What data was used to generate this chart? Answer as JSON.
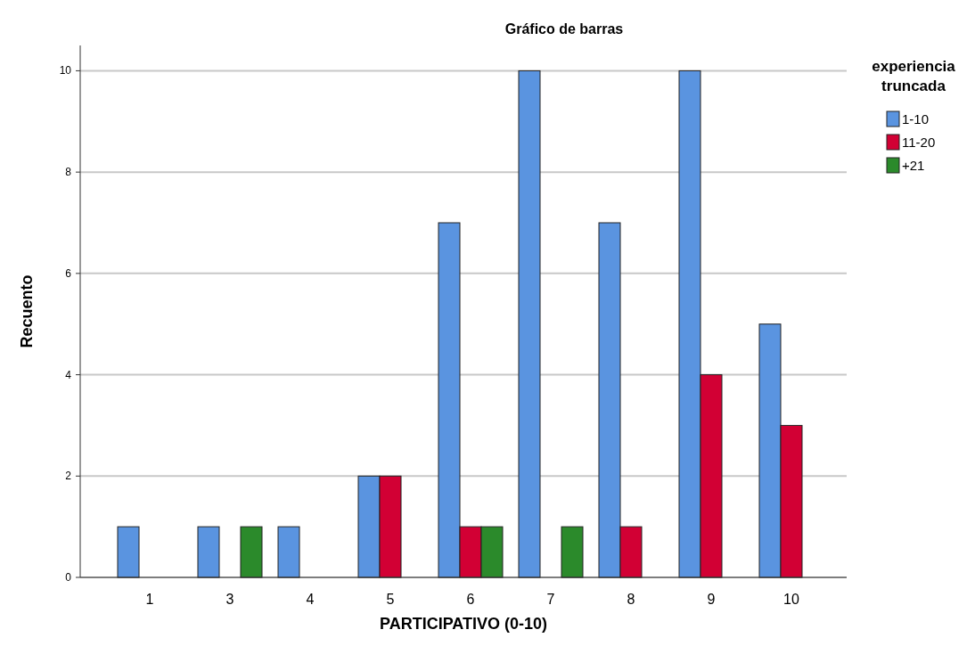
{
  "chart_data": {
    "type": "bar",
    "title": "Gráfico de barras",
    "xlabel": "PARTICIPATIVO (0-10)",
    "ylabel": "Recuento",
    "legend_title": "experiencia truncada",
    "categories": [
      "1",
      "3",
      "4",
      "5",
      "6",
      "7",
      "8",
      "9",
      "10"
    ],
    "series": [
      {
        "name": "1-10",
        "color": "#5a94e0",
        "values": [
          1,
          1,
          1,
          2,
          7,
          10,
          7,
          10,
          5
        ]
      },
      {
        "name": "11-20",
        "color": "#d20034",
        "values": [
          null,
          null,
          null,
          2,
          1,
          null,
          1,
          4,
          3
        ]
      },
      {
        "name": "+21",
        "color": "#2b8a2b",
        "values": [
          null,
          1,
          null,
          null,
          1,
          1,
          null,
          null,
          null
        ]
      }
    ],
    "ylim": [
      0,
      10.5
    ],
    "yticks": [
      0,
      2,
      4,
      6,
      8,
      10
    ],
    "grid": "y",
    "legend": "top right"
  }
}
